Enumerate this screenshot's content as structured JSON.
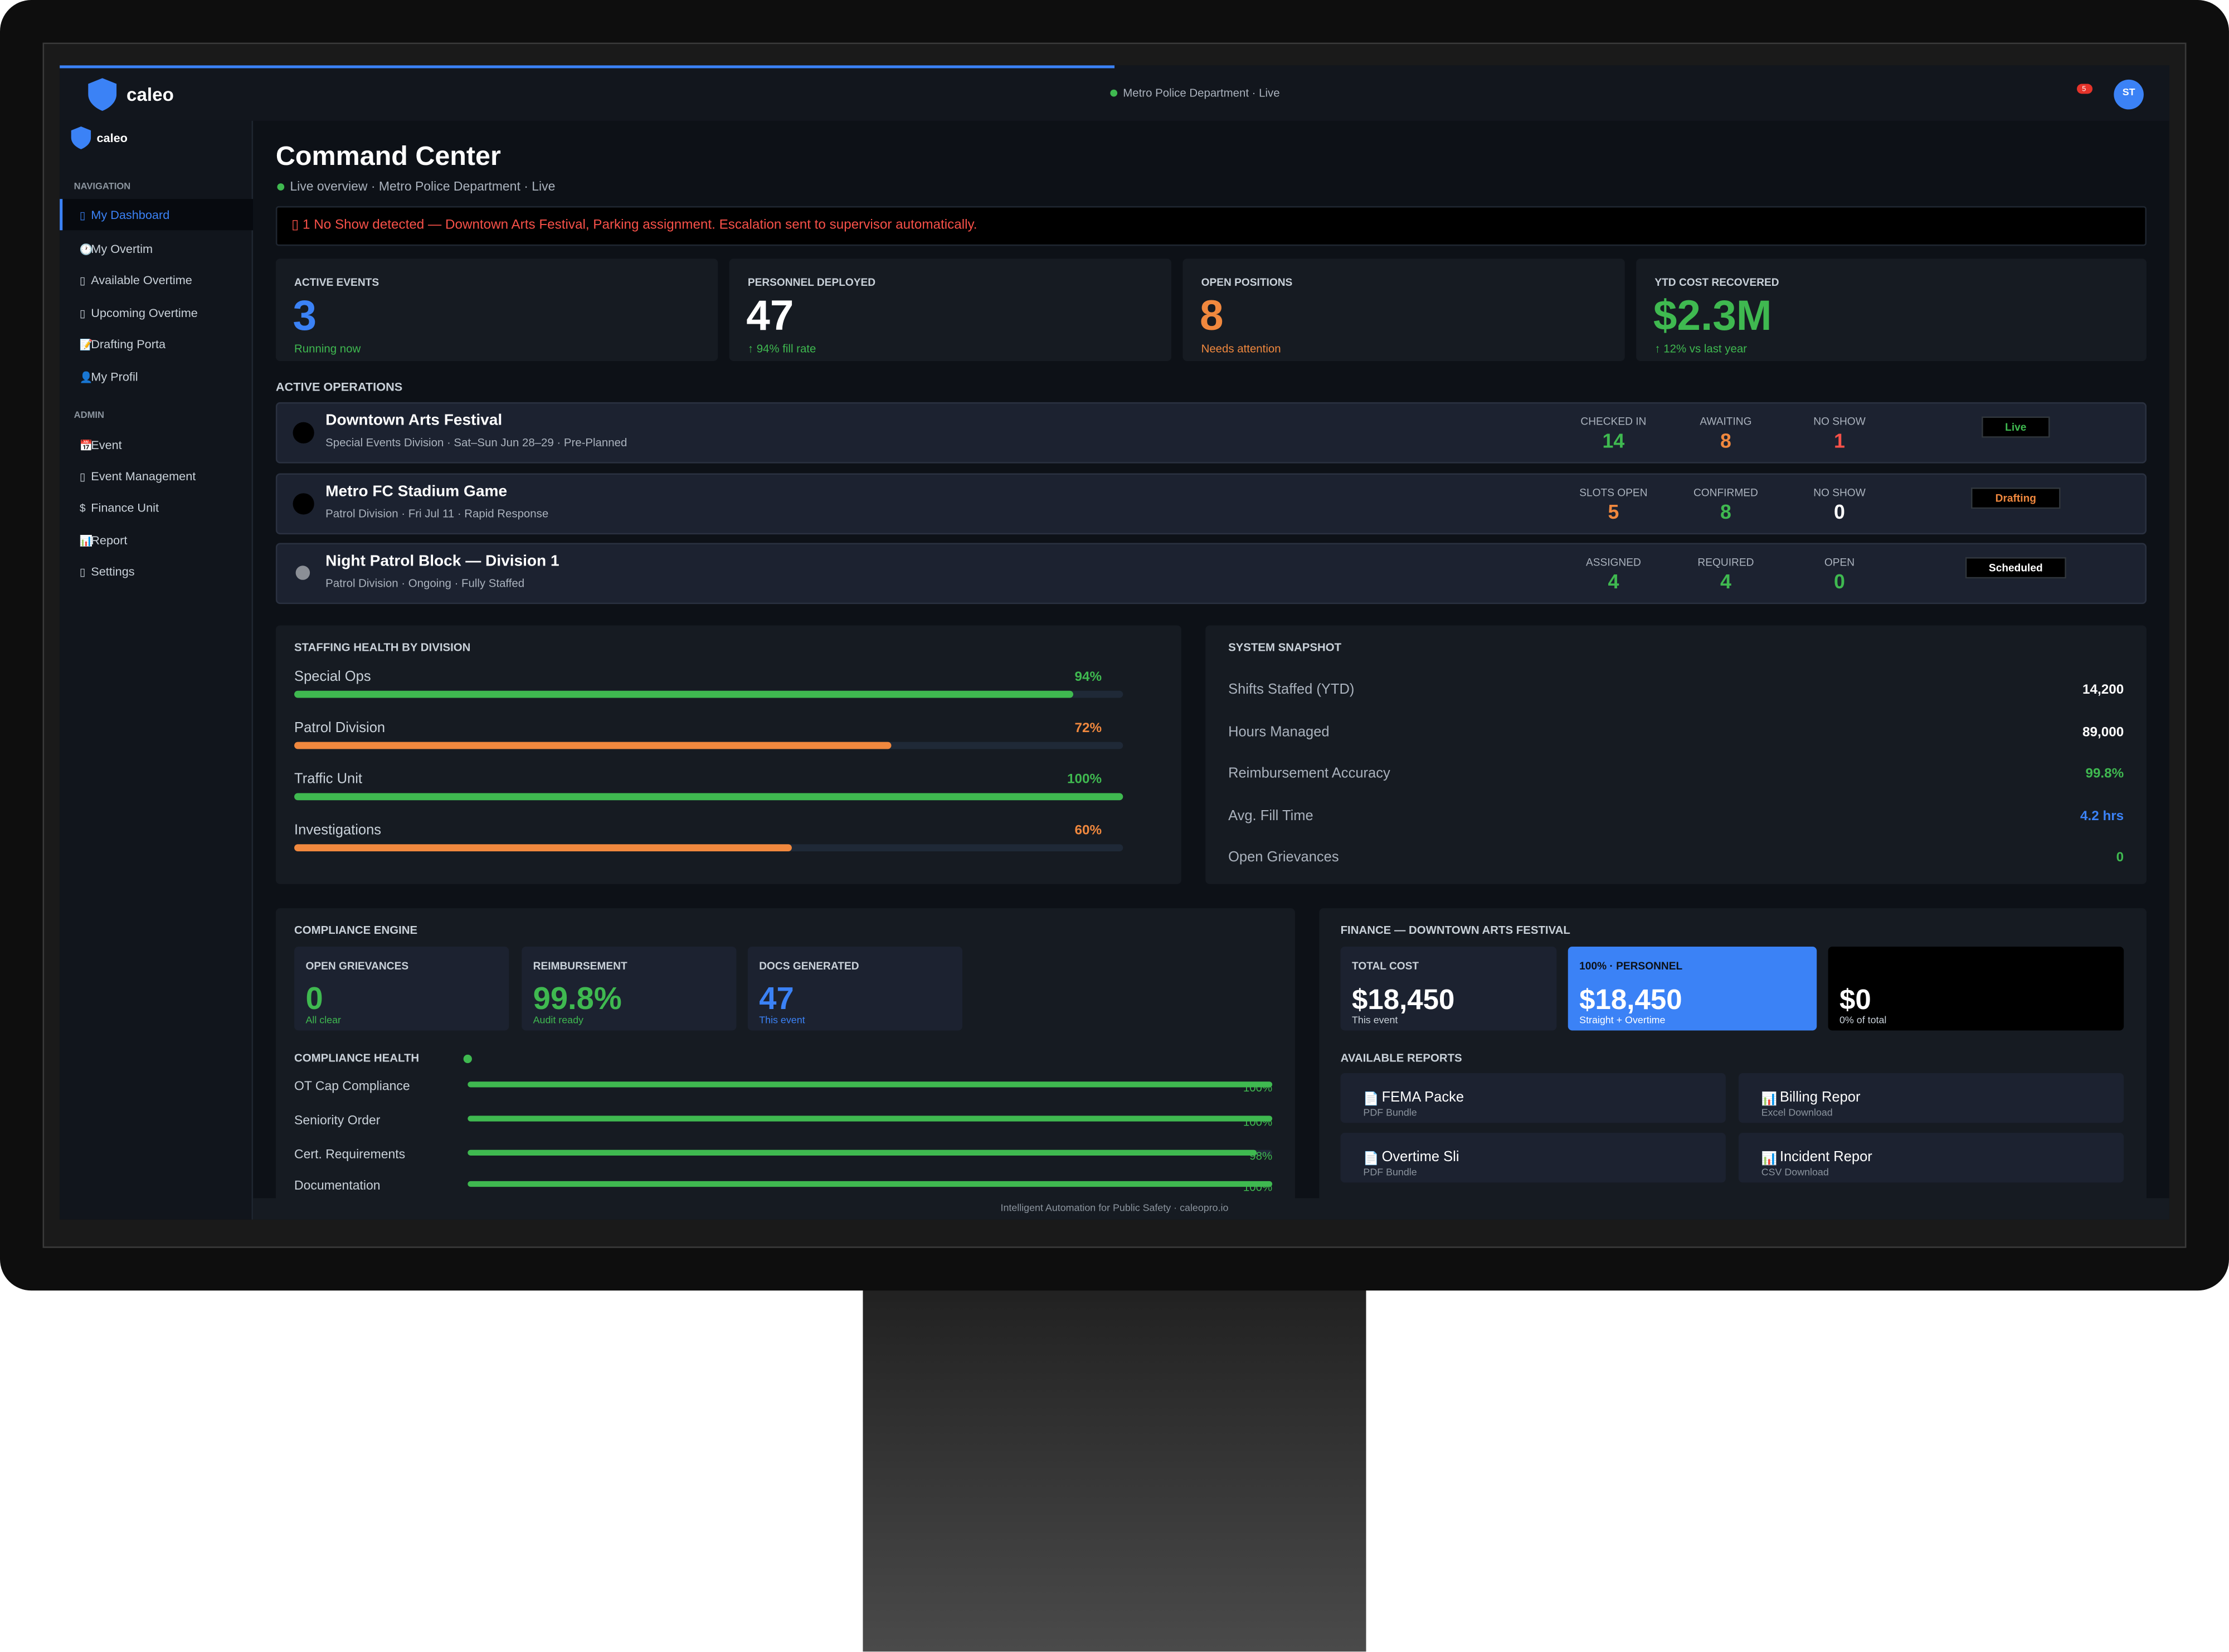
{
  "top_bar": {
    "brand": "caleo",
    "status": "Metro Police Department · Live",
    "notifications": "5",
    "avatar": "ST"
  },
  "sidebar": {
    "brand": "caleo",
    "sections": [
      {
        "title": "NAVIGATION",
        "items": [
          {
            "icon": "▯",
            "label": "My Dashboard"
          },
          {
            "icon": "🕐",
            "label": "My Overtim"
          },
          {
            "icon": "▯",
            "label": "Available Overtime"
          },
          {
            "icon": "▯",
            "label": "Upcoming Overtime"
          },
          {
            "icon": "📝",
            "label": "Drafting Porta"
          },
          {
            "icon": "👤",
            "label": "My Profil"
          }
        ]
      },
      {
        "title": "ADMIN",
        "items": [
          {
            "icon": "📅",
            "label": "Event"
          },
          {
            "icon": "▯",
            "label": "Event Management"
          },
          {
            "icon": "$",
            "label": "Finance Unit"
          },
          {
            "icon": "📊",
            "label": "Report"
          },
          {
            "icon": "▯",
            "label": "Settings"
          }
        ]
      }
    ]
  },
  "header": {
    "title": "Command Center",
    "subtitle": "Live overview · Metro Police Department · Live"
  },
  "alert": "▯ 1 No Show detected — Downtown Arts Festival, Parking assignment. Escalation sent to supervisor automatically.",
  "kpis": [
    {
      "label": "ACTIVE EVENTS",
      "value": "3",
      "note": "Running now",
      "color": "#3b82f6",
      "note_color": "#3fb950"
    },
    {
      "label": "PERSONNEL DEPLOYED",
      "value": "47",
      "note": "↑ 94% fill rate",
      "color": "#ffffff",
      "note_color": "#3fb950"
    },
    {
      "label": "OPEN POSITIONS",
      "value": "8",
      "note": "Needs attention",
      "color": "#f0883e",
      "note_color": "#f0883e"
    },
    {
      "label": "YTD COST RECOVERED",
      "value": "$2.3M",
      "note": "↑ 12% vs last year",
      "color": "#3fb950",
      "note_color": "#3fb950"
    }
  ],
  "operations": {
    "title": "ACTIVE OPERATIONS",
    "rows": [
      {
        "name": "Downtown Arts Festival",
        "details": "Special Events Division · Sat–Sun Jun 28–29 · Pre-Planned",
        "indicator_color": "#000000",
        "stats": [
          {
            "label": "CHECKED IN",
            "value": "14",
            "color": "#3fb950"
          },
          {
            "label": "AWAITING",
            "value": "8",
            "color": "#f0883e"
          },
          {
            "label": "NO SHOW",
            "value": "1",
            "color": "#f85149"
          }
        ],
        "status": "Live",
        "status_color": "#3fb950"
      },
      {
        "name": "Metro FC Stadium Game",
        "details": "Patrol Division · Fri Jul 11 · Rapid Response",
        "indicator_color": "#000000",
        "stats": [
          {
            "label": "SLOTS OPEN",
            "value": "5",
            "color": "#f0883e"
          },
          {
            "label": "CONFIRMED",
            "value": "8",
            "color": "#3fb950"
          },
          {
            "label": "NO SHOW",
            "value": "0",
            "color": "#ffffff"
          }
        ],
        "status": "Drafting",
        "status_color": "#f0883e"
      },
      {
        "name": "Night Patrol Block — Division 1",
        "details": "Patrol Division · Ongoing · Fully Staffed",
        "indicator_color": "#8b8f96",
        "stats": [
          {
            "label": "ASSIGNED",
            "value": "4",
            "color": "#3fb950"
          },
          {
            "label": "REQUIRED",
            "value": "4",
            "color": "#3fb950"
          },
          {
            "label": "OPEN",
            "value": "0",
            "color": "#3fb950"
          }
        ],
        "status": "Scheduled",
        "status_color": "#ffffff"
      }
    ]
  },
  "staffing_health": {
    "title": "STAFFING HEALTH BY DIVISION",
    "divisions": [
      {
        "name": "Special Ops",
        "value": 94,
        "label": "94%",
        "color": "#3fb950"
      },
      {
        "name": "Patrol Division",
        "value": 72,
        "label": "72%",
        "color": "#f0883e"
      },
      {
        "name": "Traffic Unit",
        "value": 100,
        "label": "100%",
        "color": "#3fb950"
      },
      {
        "name": "Investigations",
        "value": 60,
        "label": "60%",
        "color": "#f0883e"
      }
    ]
  },
  "system_snapshot": {
    "title": "SYSTEM SNAPSHOT",
    "rows": [
      {
        "label": "Shifts Staffed (YTD)",
        "value": "14,200",
        "color": "#ffffff"
      },
      {
        "label": "Hours Managed",
        "value": "89,000",
        "color": "#ffffff"
      },
      {
        "label": "Reimbursement Accuracy",
        "value": "99.8%",
        "color": "#3fb950"
      },
      {
        "label": "Avg. Fill Time",
        "value": "4.2 hrs",
        "color": "#3b82f6"
      },
      {
        "label": "Open Grievances",
        "value": "0",
        "color": "#3fb950"
      }
    ]
  },
  "compliance": {
    "title": "COMPLIANCE ENGINE",
    "cards": [
      {
        "label": "OPEN GRIEVANCES",
        "value": "0",
        "note": "All clear",
        "color": "#3fb950"
      },
      {
        "label": "REIMBURSEMENT",
        "value": "99.8%",
        "note": "Audit ready",
        "color": "#3fb950"
      },
      {
        "label": "DOCS GENERATED",
        "value": "47",
        "note": "This event",
        "color": "#3b82f6"
      }
    ],
    "health_title": "COMPLIANCE HEALTH",
    "checks": [
      {
        "name": "OT Cap Compliance",
        "value": 100,
        "label": "100%"
      },
      {
        "name": "Seniority Order",
        "value": 100,
        "label": "100%"
      },
      {
        "name": "Cert. Requirements",
        "value": 98,
        "label": "98%"
      },
      {
        "name": "Documentation",
        "value": 100,
        "label": "100%"
      }
    ]
  },
  "finance": {
    "title": "FINANCE — DOWNTOWN ARTS FESTIVAL",
    "cards": [
      {
        "label": "TOTAL COST",
        "value": "$18,450",
        "note": "This event",
        "color": "#1c2230"
      },
      {
        "label": "100% · PERSONNEL",
        "value": "$18,450",
        "note": "Straight + Overtime",
        "color": "#3b82f6"
      },
      {
        "value": "$0",
        "note": "0% of total",
        "color": "#000000"
      }
    ],
    "reports_title": "AVAILABLE REPORTS",
    "reports": [
      {
        "icon": "📄",
        "name": "FEMA Packe",
        "format": "PDF Bundle"
      },
      {
        "icon": "📊",
        "name": "Billing Repor",
        "format": "Excel Download"
      },
      {
        "icon": "📄",
        "name": "Overtime Sli",
        "format": "PDF Bundle"
      },
      {
        "icon": "📊",
        "name": "Incident Repor",
        "format": "CSV Download"
      }
    ]
  },
  "footer": "Intelligent Automation for Public Safety · caleopro.io"
}
